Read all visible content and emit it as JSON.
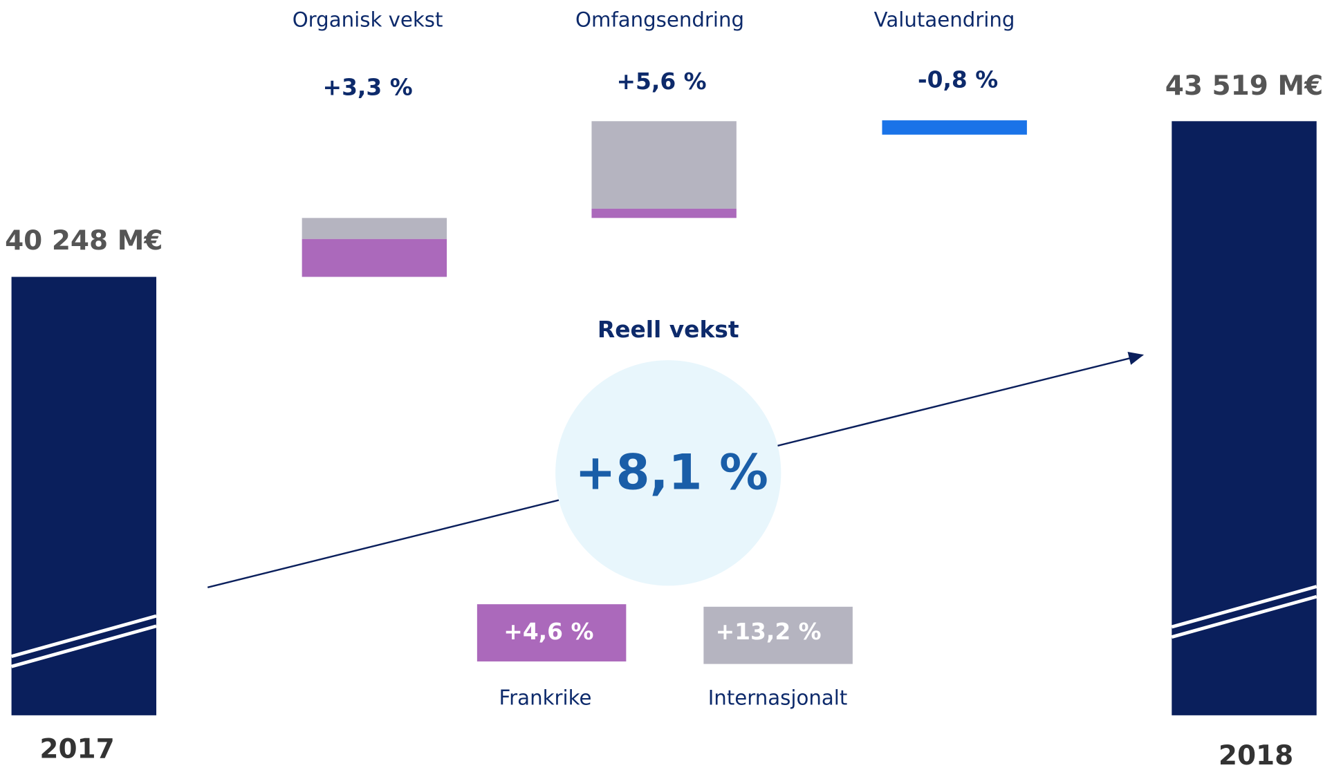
{
  "start": {
    "year": "2017",
    "value": "40 248 M€"
  },
  "end": {
    "year": "2018",
    "value": "43 519 M€"
  },
  "steps": [
    {
      "label": "Organisk vekst",
      "value": "+3,3 %"
    },
    {
      "label": "Omfangsendring",
      "value": "+5,6 %"
    },
    {
      "label": "Valutaendring",
      "value": "-0,8 %"
    }
  ],
  "real_growth": {
    "title": "Reell vekst",
    "value": "+8,1 %"
  },
  "breakdown": [
    {
      "label": "Frankrike",
      "value": "+4,6 %"
    },
    {
      "label": "Internasjonalt",
      "value": "+13,2 %"
    }
  ]
}
